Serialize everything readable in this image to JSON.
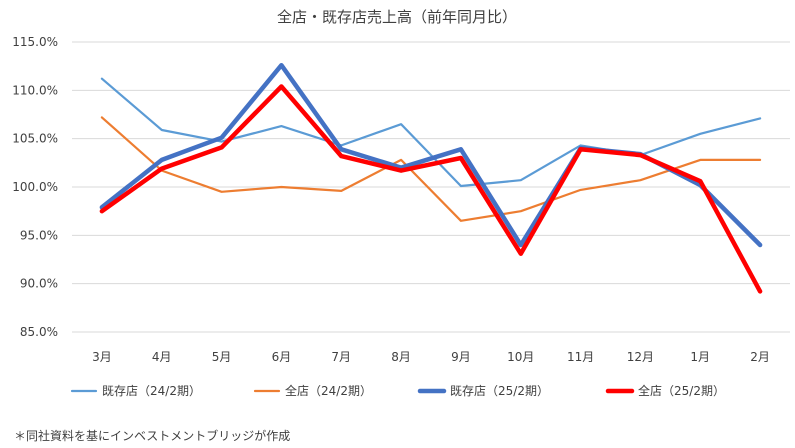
{
  "chart_data": {
    "type": "line",
    "title": "全店・既存店売上高（前年同月比）",
    "xlabel": "",
    "ylabel": "",
    "categories": [
      "3月",
      "4月",
      "5月",
      "6月",
      "7月",
      "8月",
      "9月",
      "10月",
      "11月",
      "12月",
      "1月",
      "2月"
    ],
    "ylim": [
      85.0,
      115.0
    ],
    "yticks": [
      85.0,
      90.0,
      95.0,
      100.0,
      105.0,
      110.0,
      115.0
    ],
    "ytick_labels": [
      "85.0%",
      "90.0%",
      "95.0%",
      "100.0%",
      "105.0%",
      "110.0%",
      "115.0%"
    ],
    "grid": "horizontal",
    "legend_position": "bottom",
    "series": [
      {
        "name": "既存店（24/2期）",
        "color": "#5b9bd5",
        "width": "thin",
        "values": [
          111.2,
          105.9,
          104.7,
          106.3,
          104.3,
          106.5,
          100.1,
          100.7,
          104.3,
          103.3,
          105.5,
          107.1
        ]
      },
      {
        "name": "全店（24/2期）",
        "color": "#ed7d31",
        "width": "thin",
        "values": [
          107.2,
          101.7,
          99.5,
          100.0,
          99.6,
          102.8,
          96.5,
          97.5,
          99.7,
          100.7,
          102.8,
          102.8
        ]
      },
      {
        "name": "既存店（25/2期）",
        "color": "#4472c4",
        "width": "thick",
        "values": [
          97.9,
          102.8,
          105.1,
          112.6,
          103.9,
          102.0,
          103.9,
          94.0,
          104.0,
          103.4,
          100.2,
          94.0
        ]
      },
      {
        "name": "全店（25/2期）",
        "color": "#ff0000",
        "width": "thick",
        "values": [
          97.5,
          101.9,
          104.1,
          110.4,
          103.2,
          101.7,
          103.0,
          93.1,
          103.9,
          103.3,
          100.6,
          89.2
        ]
      }
    ]
  },
  "footnote": "＊同社資料を基にインベストメントブリッジが作成"
}
